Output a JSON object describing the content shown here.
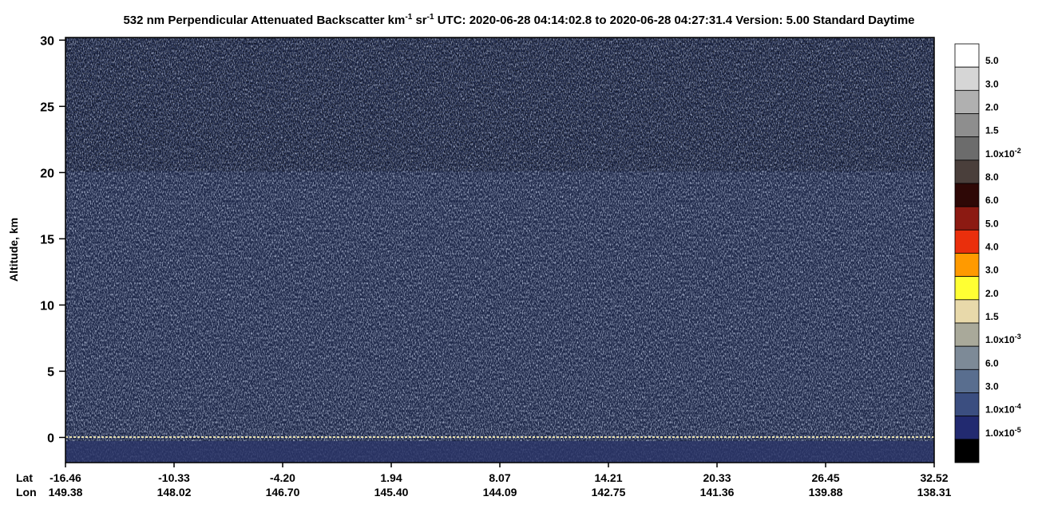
{
  "chart_data": {
    "type": "curtain",
    "title_parts": [
      {
        "text": "532 nm Perpendicular Attenuated Backscatter km"
      },
      {
        "text": "-1",
        "sup": true
      },
      {
        "text": " sr"
      },
      {
        "text": "-1",
        "sup": true
      },
      {
        "text": "  UTC: 2020-06-28 04:14:02.8 to 2020-06-28 04:27:31.4  Version: 5.00 Standard Daytime"
      }
    ],
    "y_label": "Altitude, km",
    "ylim": [
      -1.9,
      30.2
    ],
    "yticks": [
      0,
      5,
      10,
      15,
      20,
      25,
      30
    ],
    "x_row_labels": [
      "Lat",
      "Lon"
    ],
    "lat": [
      "-16.46",
      "-10.33",
      "-4.20",
      "1.94",
      "8.07",
      "14.21",
      "20.33",
      "26.45",
      "32.52"
    ],
    "lon": [
      "149.38",
      "148.02",
      "146.70",
      "145.40",
      "144.09",
      "142.75",
      "141.36",
      "139.88",
      "138.31"
    ],
    "colorbar": [
      {
        "color": "#ffffff",
        "label": "5.0"
      },
      {
        "color": "#d6d6d6",
        "label": "3.0"
      },
      {
        "color": "#b0b0b0",
        "label": "2.0"
      },
      {
        "color": "#8e8e8e",
        "label": "1.5"
      },
      {
        "color": "#6c6c6c",
        "label": "1.0x10",
        "exponent": "-2"
      },
      {
        "color": "#4a3f3b",
        "label": "8.0"
      },
      {
        "color": "#2e0806",
        "label": "6.0"
      },
      {
        "color": "#8c1a12",
        "label": "5.0"
      },
      {
        "color": "#ea2f0c",
        "label": "4.0"
      },
      {
        "color": "#ff9a00",
        "label": "3.0"
      },
      {
        "color": "#ffff33",
        "label": "2.0"
      },
      {
        "color": "#e8d9aa",
        "label": "1.5"
      },
      {
        "color": "#a9a99a",
        "label": "1.0x10",
        "exponent": "-3"
      },
      {
        "color": "#7d8a97",
        "label": "6.0"
      },
      {
        "color": "#596e8f",
        "label": "3.0"
      },
      {
        "color": "#3b4e80",
        "label": "1.0x10",
        "exponent": "-4"
      },
      {
        "color": "#222a70",
        "label": "1.0x10",
        "exponent": "-5"
      },
      {
        "color": "#000000"
      }
    ]
  }
}
